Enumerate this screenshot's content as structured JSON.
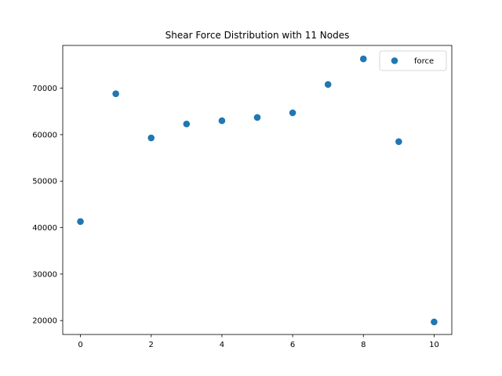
{
  "chart_data": {
    "type": "scatter",
    "title": "Shear Force Distribution with 11 Nodes",
    "xlabel": "",
    "ylabel": "",
    "xlim": [
      -0.5,
      10.5
    ],
    "ylim": [
      17000,
      79200
    ],
    "xticks": [
      0,
      2,
      4,
      6,
      8,
      10
    ],
    "yticks": [
      20000,
      30000,
      40000,
      50000,
      60000,
      70000
    ],
    "grid": false,
    "legend_position": "top-right",
    "series": [
      {
        "name": "force",
        "color": "#1f77b4",
        "x": [
          0,
          1,
          2,
          3,
          4,
          5,
          6,
          7,
          8,
          9,
          10
        ],
        "y": [
          41300,
          68800,
          59300,
          62300,
          63000,
          63700,
          64700,
          70800,
          76300,
          58500,
          19700
        ]
      }
    ]
  }
}
